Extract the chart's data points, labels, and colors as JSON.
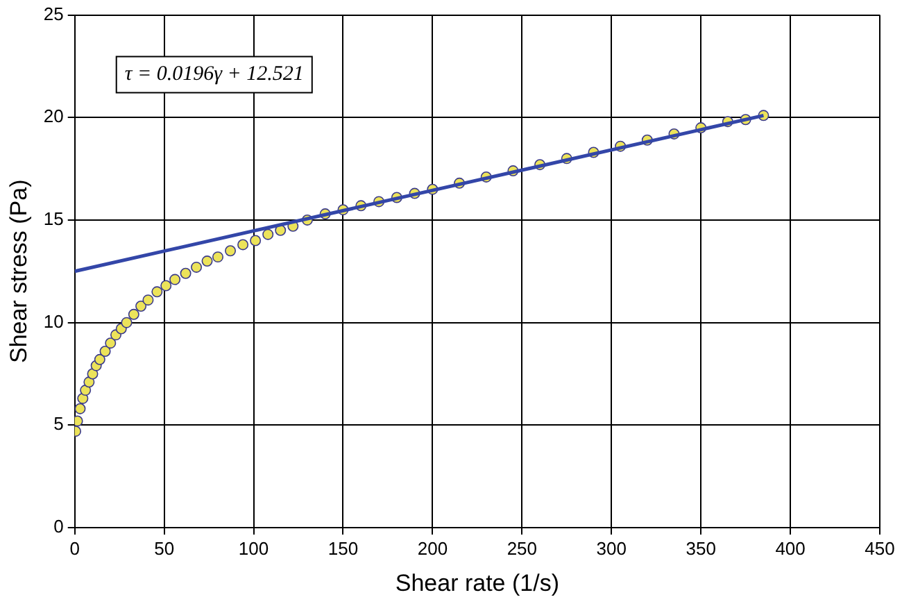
{
  "chart_data": {
    "type": "scatter",
    "xlabel": "Shear rate (1/s)",
    "ylabel": "Shear stress (Pa)",
    "xlim": [
      0,
      450
    ],
    "ylim": [
      0,
      25
    ],
    "xticks": [
      0,
      50,
      100,
      150,
      200,
      250,
      300,
      350,
      400,
      450
    ],
    "yticks": [
      0,
      5,
      10,
      15,
      20,
      25
    ],
    "grid": true,
    "legend": false,
    "marker": "circle",
    "annotations": [
      "τ = 0.0196γ + 12.521"
    ],
    "series": [
      {
        "color": "#ece35a",
        "x": [
          0.5,
          1.5,
          3,
          4.5,
          6,
          8,
          10,
          12,
          14,
          17,
          20,
          23,
          26,
          29,
          33,
          37,
          41,
          46,
          51,
          56,
          62,
          68,
          74,
          80,
          87,
          94,
          101,
          108,
          115,
          122,
          130,
          140,
          150,
          160,
          170,
          180,
          190,
          200,
          215,
          230,
          245,
          260,
          275,
          290,
          305,
          320,
          335,
          350,
          365,
          375,
          385
        ],
        "values": [
          4.7,
          5.2,
          5.8,
          6.3,
          6.7,
          7.1,
          7.5,
          7.9,
          8.2,
          8.6,
          9.0,
          9.4,
          9.7,
          10.0,
          10.4,
          10.8,
          11.1,
          11.5,
          11.8,
          12.1,
          12.4,
          12.7,
          13.0,
          13.2,
          13.5,
          13.8,
          14.0,
          14.3,
          14.5,
          14.7,
          15.0,
          15.3,
          15.5,
          15.7,
          15.9,
          16.1,
          16.3,
          16.5,
          16.8,
          17.1,
          17.4,
          17.7,
          18.0,
          18.3,
          18.6,
          18.9,
          19.2,
          19.5,
          19.8,
          19.9,
          20.1
        ]
      },
      {
        "type": "line",
        "color": "#3346a8",
        "marker": "none",
        "x": [
          0,
          385
        ],
        "values": [
          12.5,
          20.1
        ]
      }
    ]
  }
}
